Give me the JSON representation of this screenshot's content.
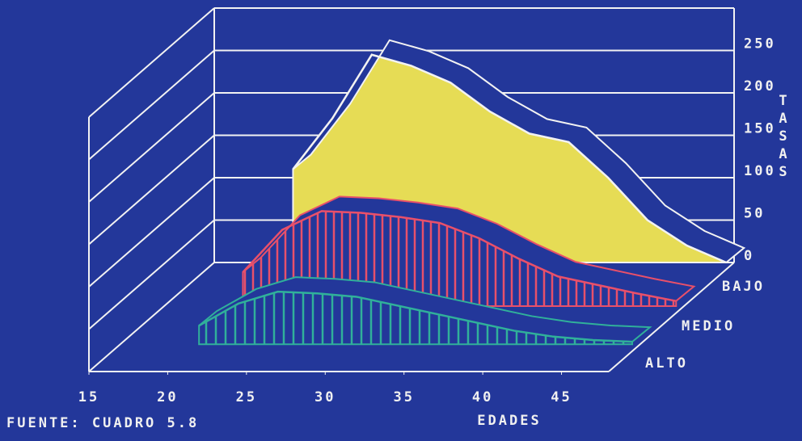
{
  "chart_data": {
    "type": "area3d",
    "x_label": "EDADES",
    "y_label": "TASAS",
    "source": "FUENTE: CUADRO 5.8",
    "x": [
      20,
      22.5,
      25,
      27.5,
      30,
      32.5,
      35,
      37.5,
      40,
      42.5,
      45,
      47.5
    ],
    "series": [
      {
        "name": "BAJO",
        "color": "#e6dc55",
        "values": [
          110,
          170,
          245,
          232,
          212,
          178,
          152,
          142,
          100,
          50,
          20,
          0
        ]
      },
      {
        "name": "MEDIO",
        "color": "#e8506a",
        "values": [
          40,
          90,
          112,
          110,
          105,
          98,
          80,
          56,
          35,
          25,
          15,
          6
        ]
      },
      {
        "name": "ALTO",
        "color": "#30b09a",
        "values": [
          22,
          48,
          62,
          60,
          56,
          46,
          36,
          26,
          16,
          9,
          5,
          3
        ]
      }
    ],
    "xlim": [
      15,
      48
    ],
    "xticks": [
      15,
      20,
      25,
      30,
      35,
      40,
      45
    ],
    "ylim": [
      0,
      300
    ],
    "yticks": [
      0,
      50,
      100,
      150,
      200,
      250
    ],
    "grid": true
  }
}
